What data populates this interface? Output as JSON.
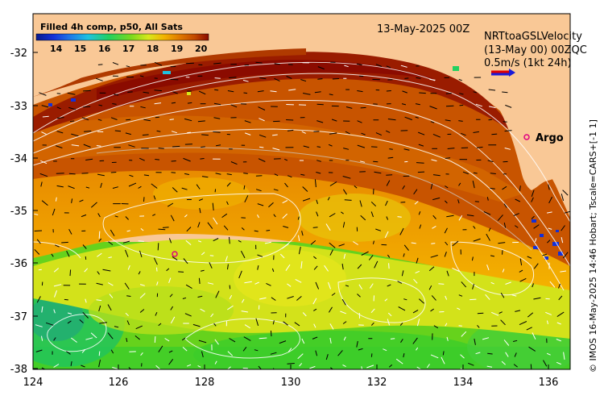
{
  "map": {
    "colorbar": {
      "title": "Filled 4h comp, p50, All Sats",
      "ticks": [
        "14",
        "15",
        "16",
        "17",
        "18",
        "19",
        "20"
      ],
      "colors": [
        "#0a1a8c",
        "#1430d8",
        "#1e7be8",
        "#1fc2e0",
        "#22d060",
        "#7ad91e",
        "#d8e81a",
        "#f2b400",
        "#e07a00",
        "#c24800",
        "#8a0a00"
      ]
    },
    "date_label": "13-May-2025 00Z",
    "legend": {
      "line1": "NRTtoaGSLVelocity",
      "line2": "(13-May 00) 00ZQC",
      "scale": "0.5m/s (1kt 24h)"
    },
    "argo_label": "Argo",
    "credit": "© IMOS 16-May-2025 14:46 Hobart; Tscale=CARS+[-1 1]",
    "x_ticks": [
      "124",
      "126",
      "128",
      "130",
      "132",
      "134",
      "136"
    ],
    "y_ticks": [
      "-32",
      "-33",
      "-34",
      "-35",
      "-36",
      "-37",
      "-38"
    ],
    "land_color": "#f9c896",
    "arrow_color": "#000000"
  }
}
